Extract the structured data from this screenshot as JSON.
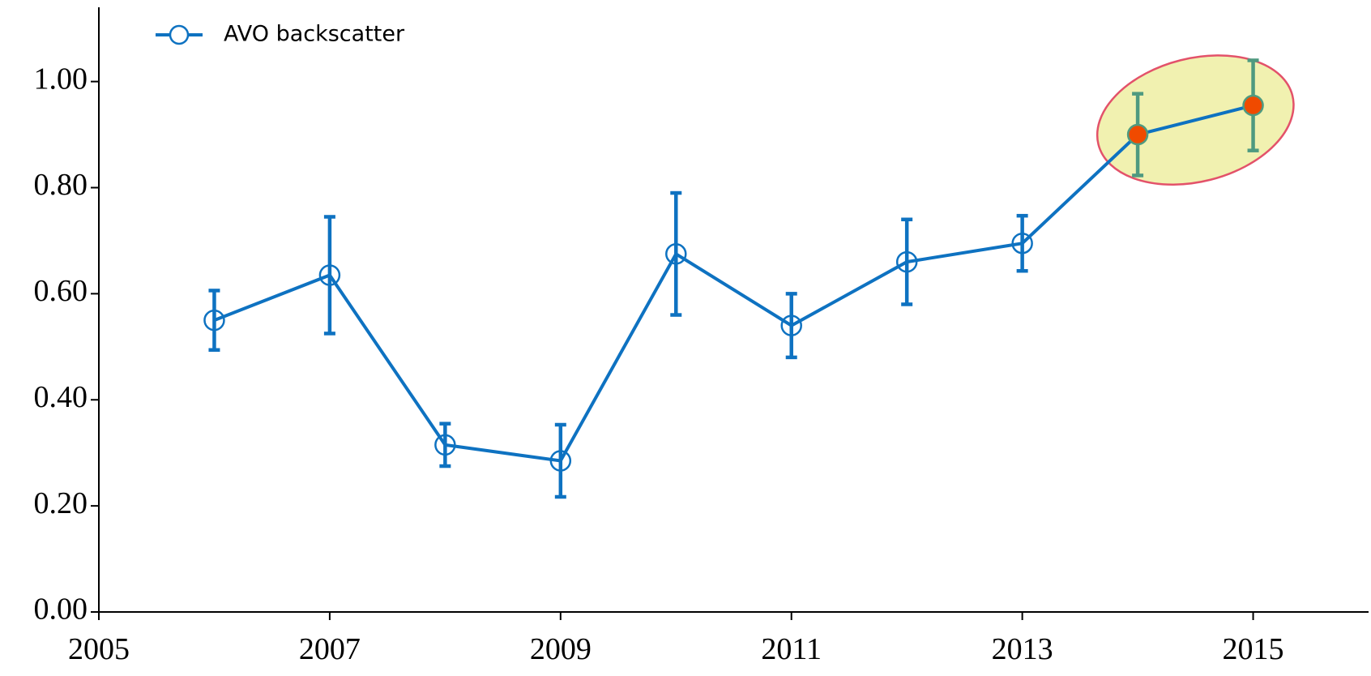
{
  "chart_data": {
    "type": "line",
    "x": [
      2006,
      2007,
      2008,
      2009,
      2010,
      2011,
      2012,
      2013,
      2014,
      2015
    ],
    "series": [
      {
        "name": "AVO backscatter",
        "color": "#0e72c1",
        "values": [
          0.55,
          0.635,
          0.315,
          0.285,
          0.675,
          0.54,
          0.66,
          0.695,
          0.9,
          0.955
        ],
        "errors": [
          0.056,
          0.11,
          0.04,
          0.068,
          0.115,
          0.06,
          0.08,
          0.052,
          0.077,
          0.085
        ],
        "marker_fills": [
          null,
          null,
          null,
          null,
          null,
          null,
          null,
          null,
          "#f04a00",
          "#f04a00"
        ],
        "error_colors": [
          "#0e72c1",
          "#0e72c1",
          "#0e72c1",
          "#0e72c1",
          "#0e72c1",
          "#0e72c1",
          "#0e72c1",
          "#0e72c1",
          "#4f9a80",
          "#4f9a80"
        ]
      }
    ],
    "highlight": {
      "fill": "#f0f0a8",
      "stroke": "#e0405a"
    },
    "xlim": [
      2005,
      2016
    ],
    "xticks": [
      2005,
      2007,
      2009,
      2011,
      2013,
      2015
    ],
    "ylim": [
      0,
      1.14
    ],
    "yticks": [
      {
        "value": 0,
        "label": "0.00"
      },
      {
        "value": 0.2,
        "label": "0.20"
      },
      {
        "value": 0.4,
        "label": "0.40"
      },
      {
        "value": 0.6,
        "label": "0.60"
      },
      {
        "value": 0.8,
        "label": "0.80"
      },
      {
        "value": 1.0,
        "label": "1.00"
      }
    ],
    "legend": "upper-left"
  }
}
